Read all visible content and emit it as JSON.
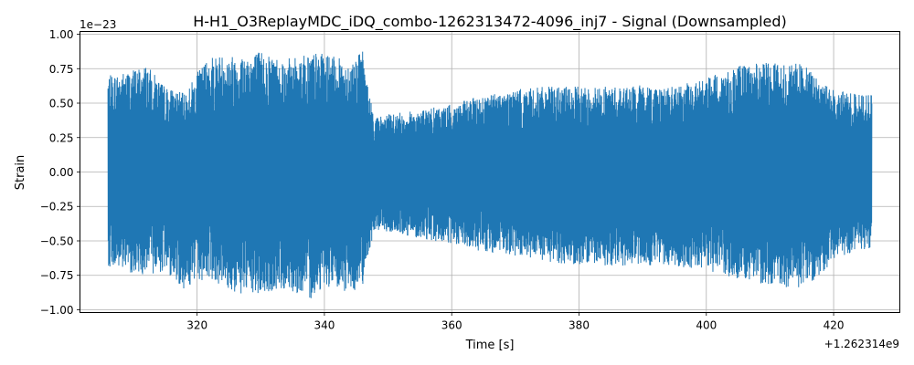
{
  "chart_data": {
    "type": "line",
    "title": "H-H1_O3ReplayMDC_iDQ_combo-1262313472-4096_inj7 - Signal (Downsampled)",
    "xlabel": "Time [s]",
    "ylabel": "Strain",
    "x_offset_label": "+1.262314e9",
    "y_scale_label": "1e−23",
    "xlim": [
      301.6,
      430.4
    ],
    "ylim": [
      -1.02,
      1.02
    ],
    "x_ticks": [
      {
        "value": 320,
        "label": "320"
      },
      {
        "value": 340,
        "label": "340"
      },
      {
        "value": 360,
        "label": "360"
      },
      {
        "value": 380,
        "label": "380"
      },
      {
        "value": 400,
        "label": "400"
      },
      {
        "value": 420,
        "label": "420"
      }
    ],
    "y_ticks": [
      {
        "value": 1.0,
        "label": "1.00"
      },
      {
        "value": 0.75,
        "label": "0.75"
      },
      {
        "value": 0.5,
        "label": "0.50"
      },
      {
        "value": 0.25,
        "label": "0.25"
      },
      {
        "value": 0.0,
        "label": "0.00"
      },
      {
        "value": -0.25,
        "label": "−0.25"
      },
      {
        "value": -0.5,
        "label": "−0.50"
      },
      {
        "value": -0.75,
        "label": "−0.75"
      },
      {
        "value": -1.0,
        "label": "−1.00"
      }
    ],
    "grid": true,
    "line_color": "#1f77b4",
    "series": [
      {
        "x_start": 306.0,
        "x_end": 426.0,
        "envelope_x": [
          306.0,
          308.0,
          312.0,
          315.0,
          318.0,
          320.0,
          322.0,
          326.0,
          330.0,
          334.0,
          338.0,
          340.0,
          342.0,
          344.0,
          346.0,
          347.0,
          348.0,
          350.0,
          355.0,
          360.0,
          365.0,
          370.0,
          375.0,
          380.0,
          385.0,
          390.0,
          395.0,
          400.0,
          405.0,
          410.0,
          415.0,
          418.0,
          420.0,
          423.0,
          426.0
        ],
        "envelope_upper": [
          0.7,
          0.72,
          0.78,
          0.62,
          0.57,
          0.72,
          0.85,
          0.85,
          0.88,
          0.82,
          0.87,
          0.86,
          0.83,
          0.8,
          0.88,
          0.57,
          0.4,
          0.42,
          0.45,
          0.49,
          0.56,
          0.6,
          0.62,
          0.62,
          0.62,
          0.63,
          0.62,
          0.68,
          0.77,
          0.8,
          0.79,
          0.66,
          0.6,
          0.57,
          0.56
        ],
        "envelope_lower": [
          -0.68,
          -0.72,
          -0.75,
          -0.72,
          -0.85,
          -0.8,
          -0.77,
          -0.89,
          -0.9,
          -0.85,
          -0.92,
          -0.82,
          -0.87,
          -0.88,
          -0.82,
          -0.57,
          -0.42,
          -0.44,
          -0.48,
          -0.53,
          -0.58,
          -0.62,
          -0.66,
          -0.67,
          -0.68,
          -0.68,
          -0.68,
          -0.72,
          -0.78,
          -0.82,
          -0.85,
          -0.75,
          -0.64,
          -0.58,
          -0.56
        ]
      }
    ]
  }
}
